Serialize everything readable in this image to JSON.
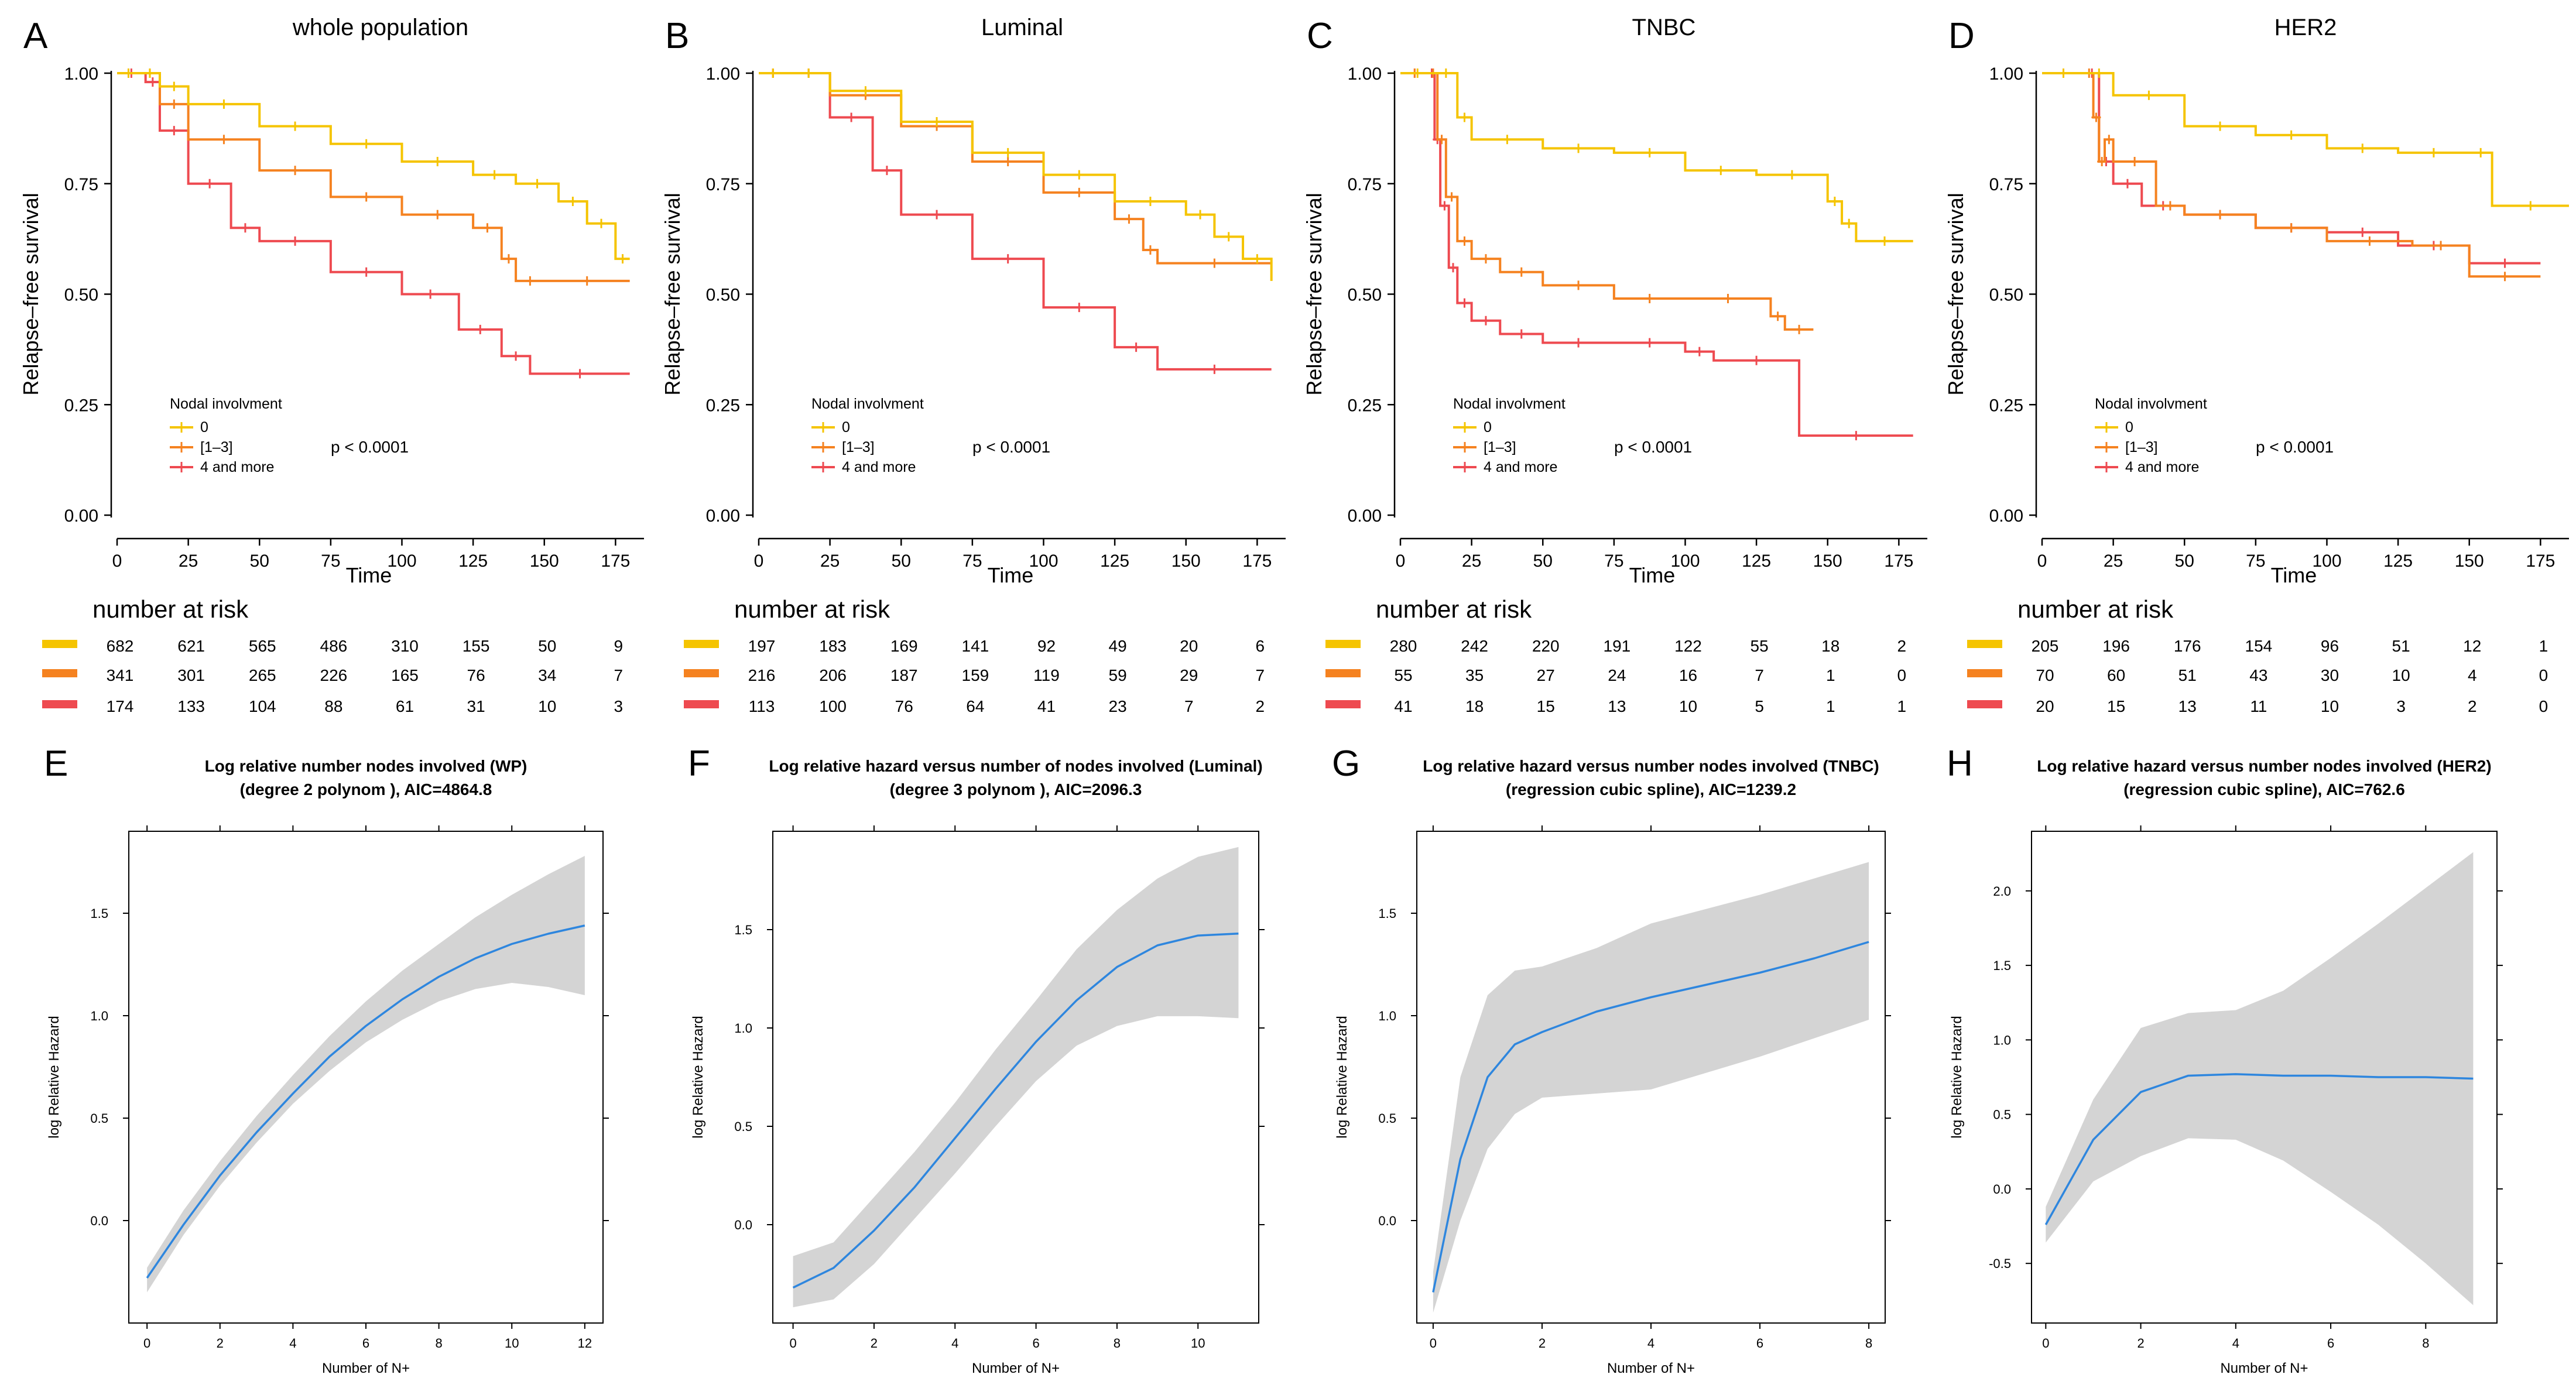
{
  "colors": {
    "group0": "#F5C400",
    "group1": "#F58220",
    "group2": "#EE4A50",
    "fit_line": "#2E86DE",
    "ci_band": "#D4D4D4"
  },
  "chart_data": [
    {
      "panel": "A",
      "type": "line",
      "title": "whole population",
      "xlabel": "Time",
      "ylabel": "Relapse–free survival",
      "xlim": [
        0,
        185
      ],
      "ylim": [
        0,
        1
      ],
      "xticks": [
        "0",
        "25",
        "50",
        "75",
        "100",
        "125",
        "150",
        "175"
      ],
      "yticks": [
        "0.00",
        "0.25",
        "0.50",
        "0.75",
        "1.00"
      ],
      "legend_title": "Nodal involvment",
      "legend_labels": [
        "0",
        "[1–3]",
        "4 and more"
      ],
      "pvalue": "p < 0.0001",
      "series": [
        {
          "name": "0",
          "x": [
            0,
            8,
            15,
            25,
            50,
            75,
            100,
            125,
            140,
            155,
            165,
            175,
            180
          ],
          "y": [
            1,
            1,
            0.97,
            0.93,
            0.88,
            0.84,
            0.8,
            0.77,
            0.75,
            0.71,
            0.66,
            0.58,
            0.58
          ]
        },
        {
          "name": "[1–3]",
          "x": [
            0,
            8,
            15,
            25,
            50,
            75,
            100,
            125,
            135,
            140,
            150,
            180
          ],
          "y": [
            1,
            1,
            0.93,
            0.85,
            0.78,
            0.72,
            0.68,
            0.65,
            0.58,
            0.53,
            0.53,
            0.53
          ]
        },
        {
          "name": "4 and more",
          "x": [
            0,
            10,
            15,
            25,
            40,
            50,
            75,
            100,
            120,
            135,
            145,
            180
          ],
          "y": [
            1,
            0.98,
            0.87,
            0.75,
            0.65,
            0.62,
            0.55,
            0.5,
            0.42,
            0.36,
            0.32,
            0.32
          ]
        }
      ],
      "risk_table": {
        "title": "number at risk",
        "times": [
          0,
          25,
          50,
          75,
          100,
          125,
          150,
          175
        ],
        "rows": [
          [
            "682",
            "621",
            "565",
            "486",
            "310",
            "155",
            "50",
            "9"
          ],
          [
            "341",
            "301",
            "265",
            "226",
            "165",
            "76",
            "34",
            "7"
          ],
          [
            "174",
            "133",
            "104",
            "88",
            "61",
            "31",
            "10",
            "3"
          ]
        ]
      }
    },
    {
      "panel": "B",
      "type": "line",
      "title": "Luminal",
      "xlabel": "Time",
      "ylabel": "Relapse–free survival",
      "xlim": [
        0,
        185
      ],
      "ylim": [
        0,
        1
      ],
      "xticks": [
        "0",
        "25",
        "50",
        "75",
        "100",
        "125",
        "150",
        "175"
      ],
      "yticks": [
        "0.00",
        "0.25",
        "0.50",
        "0.75",
        "1.00"
      ],
      "legend_title": "Nodal involvment",
      "legend_labels": [
        "0",
        "[1–3]",
        "4 and more"
      ],
      "pvalue": "p < 0.0001",
      "series": [
        {
          "name": "0",
          "x": [
            0,
            10,
            25,
            50,
            75,
            100,
            125,
            150,
            160,
            170,
            180
          ],
          "y": [
            1,
            1,
            0.96,
            0.89,
            0.82,
            0.77,
            0.71,
            0.68,
            0.63,
            0.58,
            0.53
          ]
        },
        {
          "name": "[1–3]",
          "x": [
            0,
            10,
            25,
            50,
            75,
            100,
            125,
            135,
            140,
            180
          ],
          "y": [
            1,
            1,
            0.95,
            0.88,
            0.8,
            0.73,
            0.67,
            0.6,
            0.57,
            0.57
          ]
        },
        {
          "name": "4 and more",
          "x": [
            0,
            10,
            25,
            40,
            50,
            75,
            100,
            125,
            140,
            180
          ],
          "y": [
            1,
            1,
            0.9,
            0.78,
            0.68,
            0.58,
            0.47,
            0.38,
            0.33,
            0.33
          ]
        }
      ],
      "risk_table": {
        "title": "number at risk",
        "times": [
          0,
          25,
          50,
          75,
          100,
          125,
          150,
          175
        ],
        "rows": [
          [
            "197",
            "183",
            "169",
            "141",
            "92",
            "49",
            "20",
            "6"
          ],
          [
            "216",
            "206",
            "187",
            "159",
            "119",
            "59",
            "29",
            "7"
          ],
          [
            "113",
            "100",
            "76",
            "64",
            "41",
            "23",
            "7",
            "2"
          ]
        ]
      }
    },
    {
      "panel": "C",
      "type": "line",
      "title": "TNBC",
      "xlabel": "Time",
      "ylabel": "Relapse–free survival",
      "xlim": [
        0,
        185
      ],
      "ylim": [
        0,
        1
      ],
      "xticks": [
        "0",
        "25",
        "50",
        "75",
        "100",
        "125",
        "150",
        "175"
      ],
      "yticks": [
        "0.00",
        "0.25",
        "0.50",
        "0.75",
        "1.00"
      ],
      "legend_title": "Nodal involvment",
      "legend_labels": [
        "0",
        "[1–3]",
        "4 and more"
      ],
      "pvalue": "p < 0.0001",
      "series": [
        {
          "name": "0",
          "x": [
            0,
            12,
            20,
            25,
            50,
            75,
            100,
            125,
            150,
            155,
            160,
            180
          ],
          "y": [
            1,
            1,
            0.9,
            0.85,
            0.83,
            0.82,
            0.78,
            0.77,
            0.71,
            0.66,
            0.62,
            0.62
          ]
        },
        {
          "name": "[1–3]",
          "x": [
            0,
            10,
            13,
            16,
            20,
            25,
            35,
            50,
            75,
            100,
            130,
            135,
            145
          ],
          "y": [
            1,
            1,
            0.85,
            0.72,
            0.62,
            0.58,
            0.55,
            0.52,
            0.49,
            0.49,
            0.45,
            0.42,
            0.42
          ]
        },
        {
          "name": "4 and more",
          "x": [
            0,
            10,
            12,
            14,
            17,
            20,
            25,
            35,
            50,
            75,
            100,
            110,
            140,
            180
          ],
          "y": [
            1,
            1,
            0.85,
            0.7,
            0.56,
            0.48,
            0.44,
            0.41,
            0.39,
            0.39,
            0.37,
            0.35,
            0.18,
            0.18
          ]
        }
      ],
      "risk_table": {
        "title": "number at risk",
        "times": [
          0,
          25,
          50,
          75,
          100,
          125,
          150,
          175
        ],
        "rows": [
          [
            "280",
            "242",
            "220",
            "191",
            "122",
            "55",
            "18",
            "2"
          ],
          [
            "55",
            "35",
            "27",
            "24",
            "16",
            "7",
            "1",
            "0"
          ],
          [
            "41",
            "18",
            "15",
            "13",
            "10",
            "5",
            "1",
            "1"
          ]
        ]
      }
    },
    {
      "panel": "D",
      "type": "line",
      "title": "HER2",
      "xlabel": "Time",
      "ylabel": "Relapse–free survival",
      "xlim": [
        0,
        185
      ],
      "ylim": [
        0,
        1
      ],
      "xticks": [
        "0",
        "25",
        "50",
        "75",
        "100",
        "125",
        "150",
        "175"
      ],
      "yticks": [
        "0.00",
        "0.25",
        "0.50",
        "0.75",
        "1.00"
      ],
      "legend_title": "Nodal involvment",
      "legend_labels": [
        "0",
        "[1–3]",
        "4 and more"
      ],
      "pvalue": "p < 0.0001",
      "series": [
        {
          "name": "0",
          "x": [
            0,
            15,
            25,
            50,
            75,
            100,
            125,
            150,
            158,
            185
          ],
          "y": [
            1,
            1,
            0.95,
            0.88,
            0.86,
            0.83,
            0.82,
            0.82,
            0.7,
            0.7
          ]
        },
        {
          "name": "[1–3]",
          "x": [
            0,
            15,
            18,
            20,
            22,
            25,
            40,
            50,
            75,
            100,
            130,
            150,
            175
          ],
          "y": [
            1,
            1,
            0.9,
            0.8,
            0.85,
            0.8,
            0.7,
            0.68,
            0.65,
            0.62,
            0.61,
            0.54,
            0.54
          ]
        },
        {
          "name": "4 and more",
          "x": [
            0,
            15,
            20,
            25,
            35,
            50,
            75,
            100,
            125,
            150,
            175
          ],
          "y": [
            1,
            1,
            0.8,
            0.75,
            0.7,
            0.68,
            0.65,
            0.64,
            0.61,
            0.57,
            0.57
          ]
        }
      ],
      "risk_table": {
        "title": "number at risk",
        "times": [
          0,
          25,
          50,
          75,
          100,
          125,
          150,
          175
        ],
        "rows": [
          [
            "205",
            "196",
            "176",
            "154",
            "96",
            "51",
            "12",
            "1"
          ],
          [
            "70",
            "60",
            "51",
            "43",
            "30",
            "10",
            "4",
            "0"
          ],
          [
            "20",
            "15",
            "13",
            "11",
            "10",
            "3",
            "2",
            "0"
          ]
        ]
      }
    },
    {
      "panel": "E",
      "type": "area",
      "title": [
        "Log relative number nodes involved (WP)",
        "(degree 2 polynom ), AIC=4864.8"
      ],
      "xlabel": "Number of N+",
      "ylabel": "log Relative Hazard",
      "xlim": [
        -0.5,
        12.5
      ],
      "ylim": [
        -0.5,
        1.9
      ],
      "xticks": [
        0,
        2,
        4,
        6,
        8,
        10,
        12
      ],
      "yticks": [
        0.0,
        0.5,
        1.0,
        1.5
      ],
      "x": [
        0,
        1,
        2,
        3,
        4,
        5,
        6,
        7,
        8,
        9,
        10,
        11,
        12
      ],
      "fit": [
        -0.28,
        -0.02,
        0.22,
        0.43,
        0.62,
        0.8,
        0.95,
        1.08,
        1.19,
        1.28,
        1.35,
        1.4,
        1.44
      ],
      "lower": [
        -0.35,
        -0.07,
        0.17,
        0.38,
        0.57,
        0.73,
        0.87,
        0.98,
        1.07,
        1.13,
        1.16,
        1.14,
        1.1
      ],
      "upper": [
        -0.23,
        0.05,
        0.29,
        0.51,
        0.71,
        0.9,
        1.07,
        1.22,
        1.35,
        1.48,
        1.59,
        1.69,
        1.78
      ]
    },
    {
      "panel": "F",
      "type": "area",
      "title": [
        "Log relative hazard versus number of nodes involved (Luminal)",
        "(degree 3 polynom ), AIC=2096.3"
      ],
      "xlabel": "Number of N+",
      "ylabel": "log Relative Hazard",
      "xlim": [
        -0.5,
        11.5
      ],
      "ylim": [
        -0.5,
        2.0
      ],
      "xticks": [
        0,
        2,
        4,
        6,
        8,
        10
      ],
      "yticks": [
        0.0,
        0.5,
        1.0,
        1.5
      ],
      "x": [
        0,
        1,
        2,
        3,
        4,
        5,
        6,
        7,
        8,
        9,
        10,
        11
      ],
      "fit": [
        -0.32,
        -0.22,
        -0.03,
        0.19,
        0.44,
        0.69,
        0.93,
        1.14,
        1.31,
        1.42,
        1.47,
        1.48
      ],
      "lower": [
        -0.42,
        -0.38,
        -0.2,
        0.03,
        0.26,
        0.5,
        0.73,
        0.91,
        1.01,
        1.06,
        1.06,
        1.05
      ],
      "upper": [
        -0.16,
        -0.09,
        0.14,
        0.37,
        0.62,
        0.89,
        1.14,
        1.4,
        1.6,
        1.76,
        1.87,
        1.92
      ]
    },
    {
      "panel": "G",
      "type": "area",
      "title": [
        "Log relative hazard versus number nodes involved (TNBC)",
        "(regression cubic spline), AIC=1239.2"
      ],
      "xlabel": "Number of N+",
      "ylabel": "log Relative Hazard",
      "xlim": [
        -0.3,
        8.3
      ],
      "ylim": [
        -0.5,
        1.9
      ],
      "xticks": [
        0,
        2,
        4,
        6,
        8
      ],
      "yticks": [
        0.0,
        0.5,
        1.0,
        1.5
      ],
      "x": [
        0,
        0.5,
        1,
        1.5,
        2,
        3,
        4,
        5,
        6,
        7,
        8
      ],
      "fit": [
        -0.35,
        0.3,
        0.7,
        0.86,
        0.92,
        1.02,
        1.09,
        1.15,
        1.21,
        1.28,
        1.36
      ],
      "lower": [
        -0.45,
        0.0,
        0.35,
        0.52,
        0.6,
        0.62,
        0.64,
        0.72,
        0.8,
        0.89,
        0.98
      ],
      "upper": [
        -0.25,
        0.7,
        1.1,
        1.22,
        1.24,
        1.33,
        1.45,
        1.52,
        1.59,
        1.67,
        1.75
      ]
    },
    {
      "panel": "H",
      "type": "area",
      "title": [
        "Log relative hazard versus number nodes involved (HER2)",
        "(regression cubic spline), AIC=762.6"
      ],
      "xlabel": "Number of N+",
      "ylabel": "log Relative Hazard",
      "xlim": [
        -0.3,
        9.5
      ],
      "ylim": [
        -0.9,
        2.4
      ],
      "xticks": [
        0,
        2,
        4,
        6,
        8
      ],
      "yticks": [
        -0.5,
        0.0,
        0.5,
        1.0,
        1.5,
        2.0
      ],
      "x": [
        0,
        1,
        2,
        3,
        4,
        5,
        6,
        7,
        8,
        9
      ],
      "fit": [
        -0.24,
        0.33,
        0.65,
        0.76,
        0.77,
        0.76,
        0.76,
        0.75,
        0.75,
        0.74
      ],
      "lower": [
        -0.36,
        0.05,
        0.22,
        0.34,
        0.33,
        0.19,
        -0.02,
        -0.24,
        -0.5,
        -0.78
      ],
      "upper": [
        -0.12,
        0.6,
        1.08,
        1.18,
        1.2,
        1.33,
        1.55,
        1.78,
        2.02,
        2.26
      ]
    }
  ]
}
